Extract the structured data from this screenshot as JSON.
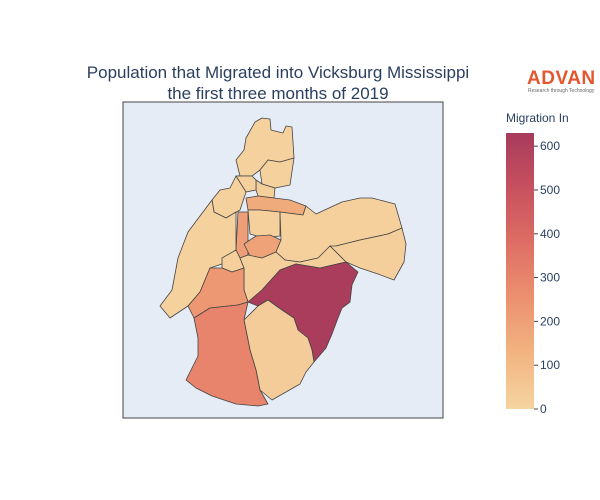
{
  "title": {
    "line1": "Population that Migrated into Vicksburg Mississippi",
    "line2": "the first three months of 2019"
  },
  "logo": {
    "name": "ADVAN",
    "tagline": "Research through Technology",
    "color": "#e4572e"
  },
  "colorbar": {
    "title": "Migration In",
    "min": 0,
    "max": 630,
    "ticks": [
      "0",
      "100",
      "200",
      "300",
      "400",
      "500",
      "600"
    ],
    "tick_values": [
      0,
      100,
      200,
      300,
      400,
      500,
      600
    ],
    "colorscale": [
      "#f5d4a0",
      "#f2b481",
      "#ec9170",
      "#de6e64",
      "#c8515f",
      "#a83b5c"
    ]
  },
  "map": {
    "background_color": "#e5ecf6",
    "border_color": "#444444"
  },
  "chart_data": {
    "type": "choropleth",
    "title": "Population that Migrated into Vicksburg Mississippi the first three months of 2019",
    "colorbar_title": "Migration In",
    "value_range": [
      0,
      630
    ],
    "regions": [
      {
        "id": "r-north",
        "value": 10
      },
      {
        "id": "r-north-center",
        "value": 10
      },
      {
        "id": "r-north-center-small",
        "value": 20
      },
      {
        "id": "r-north-left",
        "value": 10
      },
      {
        "id": "r-north-left-small",
        "value": 15
      },
      {
        "id": "r-center-band",
        "value": 160
      },
      {
        "id": "r-center-block",
        "value": 15
      },
      {
        "id": "r-center-strip",
        "value": 200
      },
      {
        "id": "r-center-round",
        "value": 190
      },
      {
        "id": "r-west",
        "value": 10
      },
      {
        "id": "r-west-small",
        "value": 15
      },
      {
        "id": "r-east-wedge",
        "value": 15
      },
      {
        "id": "r-east",
        "value": 20
      },
      {
        "id": "r-mid-east",
        "value": 20
      },
      {
        "id": "r-west-mid",
        "value": 230
      },
      {
        "id": "r-center-east-big",
        "value": 620
      },
      {
        "id": "r-south-center",
        "value": 30
      },
      {
        "id": "r-southwest",
        "value": 300
      }
    ]
  }
}
